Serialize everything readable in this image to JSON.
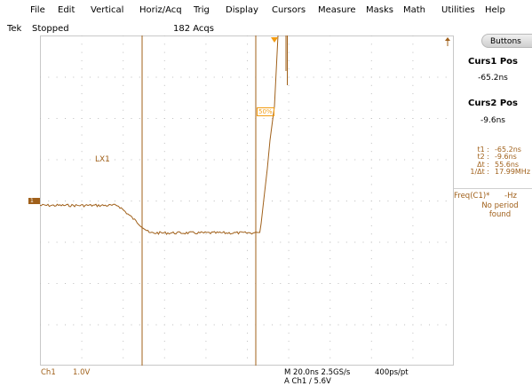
{
  "menu": {
    "items": [
      "File",
      "Edit",
      "Vertical",
      "Horiz/Acq",
      "Trig",
      "Display",
      "Cursors",
      "Measure",
      "Masks",
      "Math",
      "Utilities",
      "Help"
    ]
  },
  "status": {
    "brand": "Tek",
    "state": "Stopped",
    "acquisitions": "182 Acqs"
  },
  "trace": {
    "label": "LX1",
    "channel_marker": "1",
    "trigger_level_marker": "50%"
  },
  "sidebar": {
    "button_label": "Buttons",
    "curs1_title": "Curs1 Pos",
    "curs1_value": "-65.2ns",
    "curs2_title": "Curs2 Pos",
    "curs2_value": "-9.6ns",
    "readout": [
      {
        "key": "t1 :",
        "value": "-65.2ns"
      },
      {
        "key": "t2 :",
        "value": "-9.6ns"
      },
      {
        "key": "Δt :",
        "value": "55.6ns"
      },
      {
        "key": "1/Δt :",
        "value": "17.99MHz"
      }
    ],
    "freq_label": "Freq(C1)*",
    "freq_unit": "-Hz",
    "freq_note_line1": "No period",
    "freq_note_line2": "found"
  },
  "bottom": {
    "channel": "Ch1",
    "scale": "1.0V",
    "timebase": "M 20.0ns 2.5GS/s",
    "record": "400ps/pt",
    "trigger": "A  Ch1  ∕  5.6V"
  },
  "colors": {
    "trace": "#a0601a",
    "cursor": "#a0601a",
    "grid": "#c8c8c8"
  }
}
